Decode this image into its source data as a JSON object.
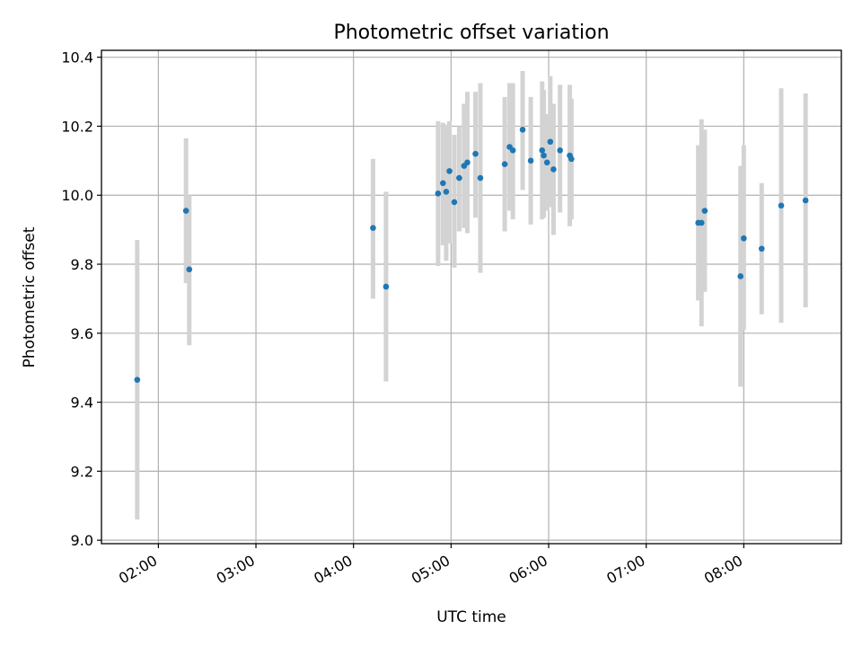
{
  "chart_data": {
    "type": "scatter",
    "title": "Photometric offset variation",
    "xlabel": "UTC time",
    "ylabel": "Photometric offset",
    "x_axis": {
      "kind": "time",
      "range": [
        "01:25",
        "09:00"
      ],
      "ticks": [
        "02:00",
        "03:00",
        "04:00",
        "05:00",
        "06:00",
        "07:00",
        "08:00"
      ]
    },
    "y_axis": {
      "range": [
        8.99,
        10.42
      ],
      "ticks": [
        "9.0",
        "9.2",
        "9.4",
        "9.6",
        "9.8",
        "10.0",
        "10.2",
        "10.4"
      ]
    },
    "grid": true,
    "colors": {
      "points": "#1f77b4",
      "error_bars": "#d3d3d3"
    },
    "points": [
      {
        "t": "01:47",
        "y": 9.465,
        "lo": 9.06,
        "hi": 9.87
      },
      {
        "t": "02:17",
        "y": 9.955,
        "lo": 9.745,
        "hi": 10.165
      },
      {
        "t": "02:19",
        "y": 9.785,
        "lo": 9.565,
        "hi": 10.0
      },
      {
        "t": "04:12",
        "y": 9.905,
        "lo": 9.7,
        "hi": 10.105
      },
      {
        "t": "04:20",
        "y": 9.735,
        "lo": 9.46,
        "hi": 10.01
      },
      {
        "t": "04:52",
        "y": 10.005,
        "lo": 9.795,
        "hi": 10.215
      },
      {
        "t": "04:55",
        "y": 10.035,
        "lo": 9.855,
        "hi": 10.21
      },
      {
        "t": "04:57",
        "y": 10.01,
        "lo": 9.81,
        "hi": 10.205
      },
      {
        "t": "04:59",
        "y": 10.07,
        "lo": 9.86,
        "hi": 10.215
      },
      {
        "t": "05:02",
        "y": 9.98,
        "lo": 9.79,
        "hi": 10.175
      },
      {
        "t": "05:05",
        "y": 10.05,
        "lo": 9.895,
        "hi": 10.2
      },
      {
        "t": "05:08",
        "y": 10.085,
        "lo": 9.905,
        "hi": 10.265
      },
      {
        "t": "05:10",
        "y": 10.095,
        "lo": 9.89,
        "hi": 10.3
      },
      {
        "t": "05:15",
        "y": 10.12,
        "lo": 9.935,
        "hi": 10.3
      },
      {
        "t": "05:18",
        "y": 10.05,
        "lo": 9.775,
        "hi": 10.325
      },
      {
        "t": "05:33",
        "y": 10.09,
        "lo": 9.895,
        "hi": 10.285
      },
      {
        "t": "05:36",
        "y": 10.14,
        "lo": 9.955,
        "hi": 10.325
      },
      {
        "t": "05:38",
        "y": 10.13,
        "lo": 9.93,
        "hi": 10.325
      },
      {
        "t": "05:44",
        "y": 10.19,
        "lo": 10.015,
        "hi": 10.36
      },
      {
        "t": "05:49",
        "y": 10.1,
        "lo": 9.915,
        "hi": 10.285
      },
      {
        "t": "05:56",
        "y": 10.13,
        "lo": 9.93,
        "hi": 10.33
      },
      {
        "t": "05:57",
        "y": 10.115,
        "lo": 9.935,
        "hi": 10.305
      },
      {
        "t": "05:59",
        "y": 10.095,
        "lo": 9.955,
        "hi": 10.235
      },
      {
        "t": "06:01",
        "y": 10.155,
        "lo": 9.965,
        "hi": 10.345
      },
      {
        "t": "06:03",
        "y": 10.075,
        "lo": 9.885,
        "hi": 10.265
      },
      {
        "t": "06:07",
        "y": 10.13,
        "lo": 9.95,
        "hi": 10.32
      },
      {
        "t": "06:13",
        "y": 10.115,
        "lo": 9.91,
        "hi": 10.32
      },
      {
        "t": "06:14",
        "y": 10.105,
        "lo": 9.93,
        "hi": 10.28
      },
      {
        "t": "07:32",
        "y": 9.92,
        "lo": 9.695,
        "hi": 10.145
      },
      {
        "t": "07:34",
        "y": 9.92,
        "lo": 9.62,
        "hi": 10.22
      },
      {
        "t": "07:36",
        "y": 9.955,
        "lo": 9.72,
        "hi": 10.19
      },
      {
        "t": "07:58",
        "y": 9.765,
        "lo": 9.445,
        "hi": 10.085
      },
      {
        "t": "08:00",
        "y": 9.875,
        "lo": 9.61,
        "hi": 10.145
      },
      {
        "t": "08:11",
        "y": 9.845,
        "lo": 9.655,
        "hi": 10.035
      },
      {
        "t": "08:23",
        "y": 9.97,
        "lo": 9.63,
        "hi": 10.31
      },
      {
        "t": "08:38",
        "y": 9.985,
        "lo": 9.675,
        "hi": 10.295
      }
    ]
  }
}
